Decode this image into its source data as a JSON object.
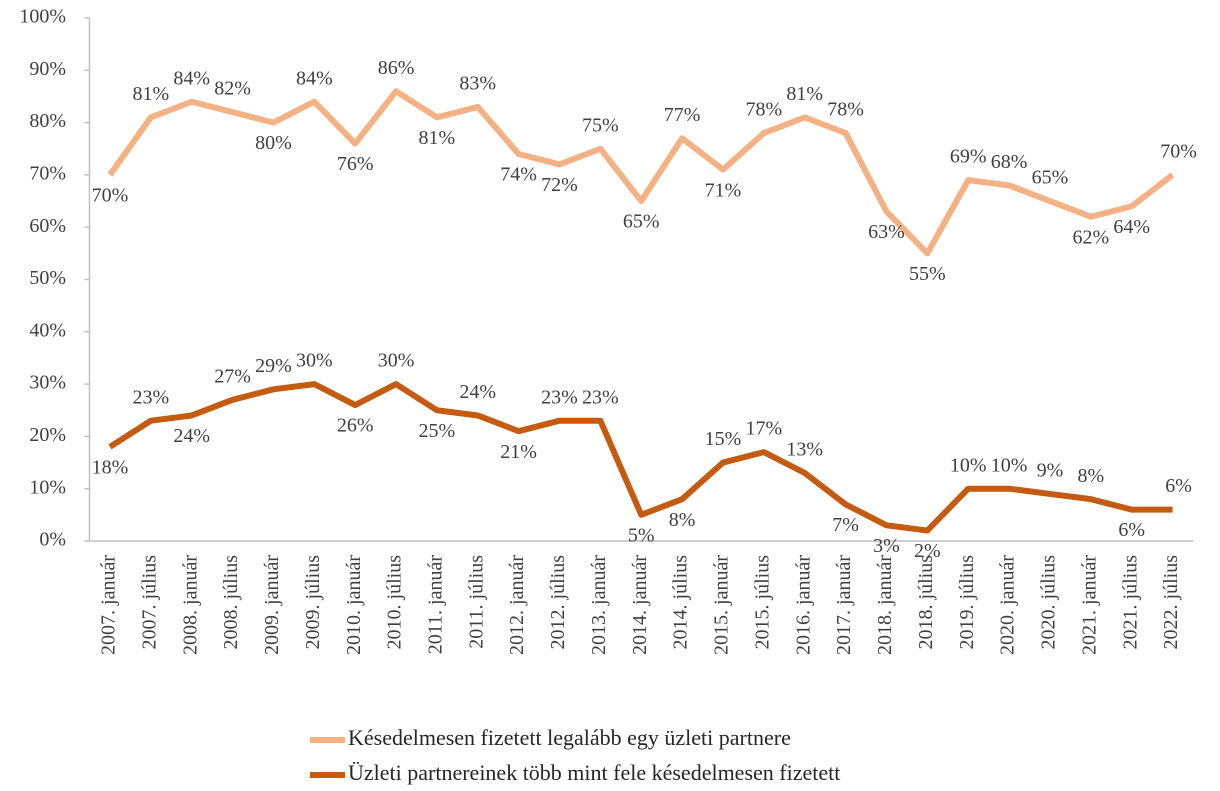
{
  "chart_data": {
    "type": "line",
    "categories": [
      "2007. január",
      "2007. július",
      "2008. január",
      "2008. július",
      "2009. január",
      "2009. július",
      "2010. január",
      "2010. július",
      "2011. január",
      "2011. július",
      "2012. január",
      "2012. július",
      "2013. január",
      "2014. január",
      "2014. július",
      "2015. január",
      "2015. július",
      "2016. január",
      "2017. január",
      "2018. január",
      "2018. július",
      "2019. július",
      "2020. január",
      "2020. július",
      "2021. január",
      "2021. július",
      "2022. július"
    ],
    "series": [
      {
        "name": "Késedelmesen fizetett legalább egy üzleti partnere",
        "color": "#f4b183",
        "values": [
          70,
          81,
          84,
          82,
          80,
          84,
          76,
          86,
          81,
          83,
          74,
          72,
          75,
          65,
          77,
          71,
          78,
          81,
          78,
          63,
          55,
          69,
          68,
          65,
          62,
          64,
          70
        ],
        "value_labels": [
          "70%",
          "81%",
          "84%",
          "82%",
          "80%",
          "84%",
          "76%",
          "86%",
          "81%",
          "83%",
          "74%",
          "72%",
          "75%",
          "65%",
          "77%",
          "71%",
          "78%",
          "81%",
          "78%",
          "63%",
          "55%",
          "69%",
          "68%",
          "65%",
          "62%",
          "64%",
          "70%"
        ]
      },
      {
        "name": "Üzleti partnereinek több mint fele késedelmesen fizetett",
        "color": "#c55a11",
        "values": [
          18,
          23,
          24,
          27,
          29,
          30,
          26,
          30,
          25,
          24,
          21,
          23,
          23,
          5,
          8,
          15,
          17,
          13,
          7,
          3,
          2,
          10,
          10,
          9,
          8,
          6,
          6
        ],
        "value_labels": [
          "18%",
          "23%",
          "24%",
          "27%",
          "29%",
          "30%",
          "26%",
          "30%",
          "25%",
          "24%",
          "21%",
          "23%",
          "23%",
          "5%",
          "8%",
          "15%",
          "17%",
          "13%",
          "7%",
          "3%",
          "2%",
          "10%",
          "10%",
          "9%",
          "8%",
          "6%",
          "6%"
        ]
      }
    ],
    "ylim": [
      0,
      100
    ],
    "yticks": [
      {
        "value": 0,
        "label": "0%"
      },
      {
        "value": 10,
        "label": "10%"
      },
      {
        "value": 20,
        "label": "20%"
      },
      {
        "value": 30,
        "label": "30%"
      },
      {
        "value": 40,
        "label": "40%"
      },
      {
        "value": 50,
        "label": "50%"
      },
      {
        "value": 60,
        "label": "60%"
      },
      {
        "value": 70,
        "label": "70%"
      },
      {
        "value": 80,
        "label": "80%"
      },
      {
        "value": 90,
        "label": "90%"
      },
      {
        "value": 100,
        "label": "100%"
      }
    ],
    "grid": false,
    "legend": "bottom"
  }
}
